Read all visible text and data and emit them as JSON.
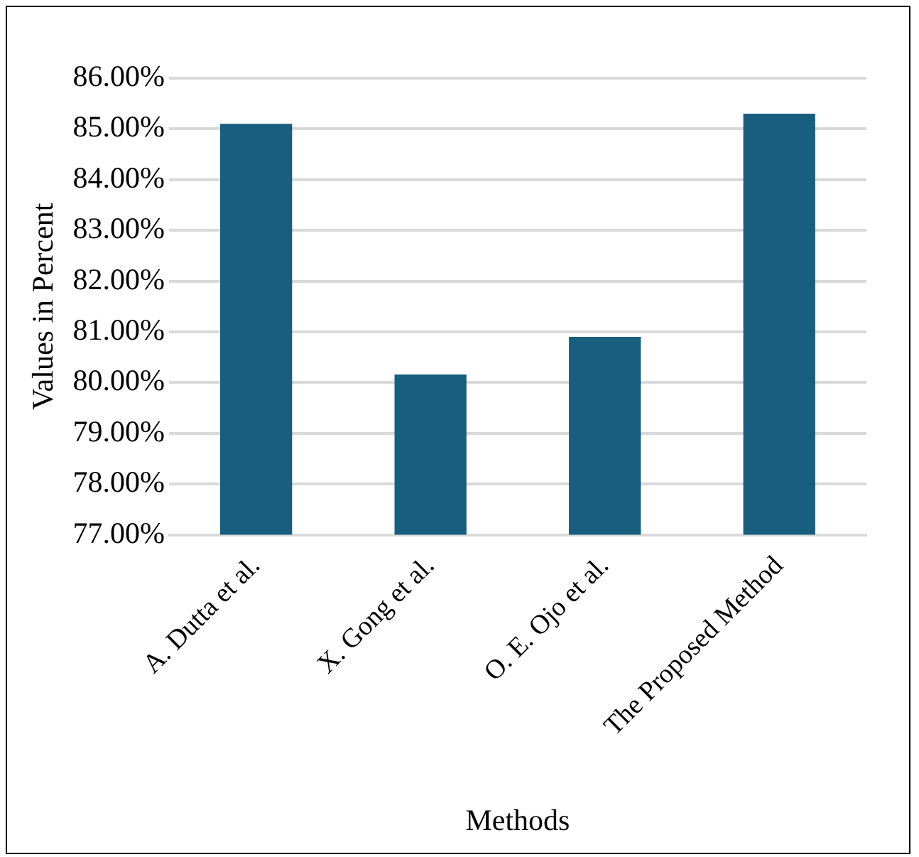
{
  "chart_data": {
    "type": "bar",
    "xlabel": "Methods",
    "ylabel": "Values in Percent",
    "categories": [
      "A. Dutta et al.",
      "X. Gong et al.",
      "O. E. Ojo et al.",
      "The Proposed Method"
    ],
    "values": [
      85.1,
      80.16,
      80.9,
      85.3
    ],
    "color": "#175e7f",
    "ylim": [
      77,
      86
    ],
    "yticks": [
      {
        "value": 77,
        "label": "77.00%"
      },
      {
        "value": 78,
        "label": "78.00%"
      },
      {
        "value": 79,
        "label": "79.00%"
      },
      {
        "value": 80,
        "label": "80.00%"
      },
      {
        "value": 81,
        "label": "81.00%"
      },
      {
        "value": 82,
        "label": "82.00%"
      },
      {
        "value": 83,
        "label": "83.00%"
      },
      {
        "value": 84,
        "label": "84.00%"
      },
      {
        "value": 85,
        "label": "85.00%"
      },
      {
        "value": 86,
        "label": "86.00%"
      }
    ],
    "grid": "y",
    "legend": false
  }
}
